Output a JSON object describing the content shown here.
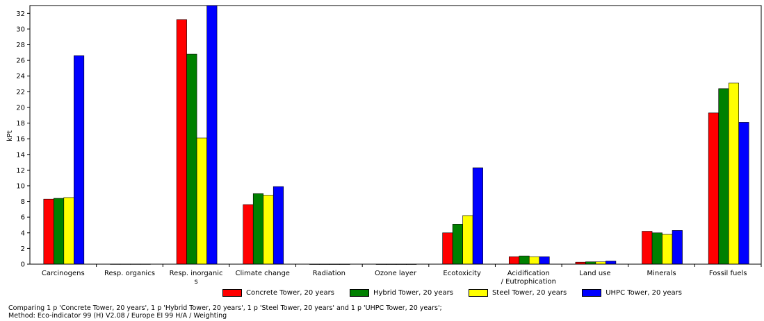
{
  "chart_data": {
    "type": "bar",
    "ylabel": "kPt",
    "ylim": [
      0,
      33
    ],
    "y_ticks": [
      0,
      2,
      4,
      6,
      8,
      10,
      12,
      14,
      16,
      18,
      20,
      22,
      24,
      26,
      28,
      30,
      32
    ],
    "categories": [
      "Carcinogens",
      "Resp. organics",
      "Resp. inorganics",
      "Climate change",
      "Radiation",
      "Ozone layer",
      "Ecotoxicity",
      "Acidification / Eutrophication",
      "Land use",
      "Minerals",
      "Fossil fuels"
    ],
    "category_label_lines": [
      [
        "Carcinogens"
      ],
      [
        "Resp. organics"
      ],
      [
        "Resp. inorganic",
        "s"
      ],
      [
        "Climate change"
      ],
      [
        "Radiation"
      ],
      [
        "Ozone layer"
      ],
      [
        "Ecotoxicity"
      ],
      [
        "Acidification",
        "/ Eutrophication"
      ],
      [
        "Land use"
      ],
      [
        "Minerals"
      ],
      [
        "Fossil fuels"
      ]
    ],
    "series": [
      {
        "name": "Concrete Tower, 20 years",
        "color": "#ff0000",
        "values": [
          8.3,
          0.02,
          31.2,
          7.6,
          0.01,
          0.01,
          4.0,
          0.95,
          0.25,
          4.2,
          19.3
        ]
      },
      {
        "name": "Hybrid Tower, 20 years",
        "color": "#008000",
        "values": [
          8.4,
          0.02,
          26.8,
          9.0,
          0.01,
          0.01,
          5.1,
          1.05,
          0.3,
          4.0,
          22.4
        ]
      },
      {
        "name": "Steel Tower, 20 years",
        "color": "#ffff00",
        "values": [
          8.5,
          0.02,
          16.1,
          8.8,
          0.01,
          0.01,
          6.2,
          0.95,
          0.3,
          3.8,
          23.1
        ]
      },
      {
        "name": "UHPC Tower, 20 years",
        "color": "#0000ff",
        "values": [
          26.6,
          0.02,
          33.5,
          9.9,
          0.01,
          0.01,
          12.3,
          0.95,
          0.4,
          4.3,
          18.1
        ]
      }
    ],
    "grid": false,
    "legend_position": "bottom"
  },
  "caption": {
    "line1": "Comparing 1 p 'Concrete Tower, 20 years', 1 p 'Hybrid Tower, 20 years', 1 p 'Steel Tower, 20 years' and 1 p 'UHPC Tower, 20 years';",
    "line2": "Method: Eco-indicator 99 (H) V2.08 / Europe EI 99 H/A / Weighting"
  }
}
